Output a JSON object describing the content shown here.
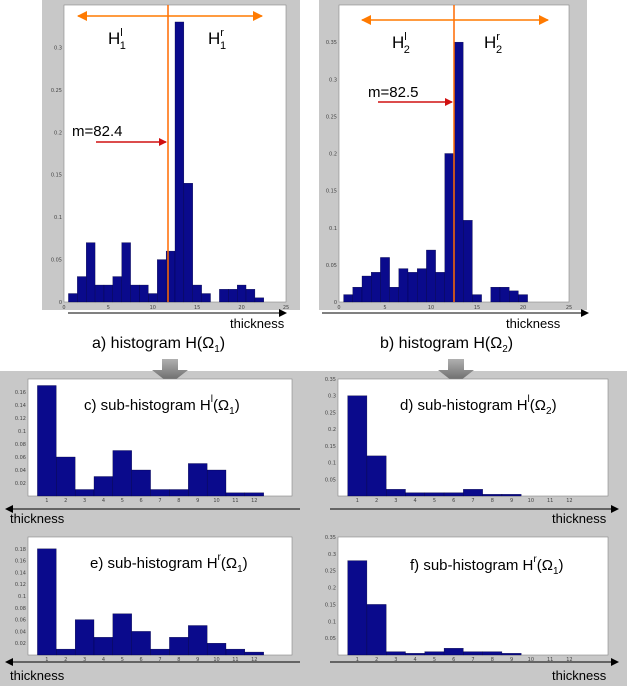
{
  "top_panels": [
    {
      "id": "a",
      "caption": "a) histogram H(Ω1)",
      "axis_label": "thickness",
      "left_label": "H1l",
      "right_label": "H1r",
      "median_label": "m=82.4",
      "y_ticks": [
        "0",
        "0.05",
        "0.1",
        "0.15",
        "0.2",
        "0.25",
        "0.3"
      ],
      "x_ticks": [
        "0",
        "5",
        "10",
        "15",
        "20",
        "25"
      ]
    },
    {
      "id": "b",
      "caption": "b) histogram H(Ω2)",
      "axis_label": "thickness",
      "left_label": "H2l",
      "right_label": "H2r",
      "median_label": "m=82.5",
      "y_ticks": [
        "0",
        "0.05",
        "0.1",
        "0.15",
        "0.2",
        "0.25",
        "0.3",
        "0.35"
      ],
      "x_ticks": [
        "0",
        "5",
        "10",
        "15",
        "20",
        "25"
      ]
    }
  ],
  "sub_panels": [
    {
      "id": "c",
      "title": "c) sub-histogram H l(Ω1)",
      "axis_label": "thickness",
      "x_ticks": [
        "1",
        "2",
        "3",
        "4",
        "5",
        "6",
        "7",
        "8",
        "9",
        "10",
        "11",
        "12"
      ],
      "y_ticks": [
        "0.02",
        "0.04",
        "0.06",
        "0.08",
        "0.1",
        "0.12",
        "0.14",
        "0.16"
      ]
    },
    {
      "id": "d",
      "title": "d) sub-histogram H l(Ω2)",
      "axis_label": "thickness",
      "x_ticks": [
        "1",
        "2",
        "3",
        "4",
        "5",
        "6",
        "7",
        "8",
        "9",
        "10",
        "11",
        "12"
      ],
      "y_ticks": [
        "0.05",
        "0.1",
        "0.15",
        "0.2",
        "0.25",
        "0.3",
        "0.35"
      ]
    },
    {
      "id": "e",
      "title": "e) sub-histogram H r(Ω1)",
      "axis_label": "thickness",
      "x_ticks": [
        "1",
        "2",
        "3",
        "4",
        "5",
        "6",
        "7",
        "8",
        "9",
        "10",
        "11",
        "12"
      ],
      "y_ticks": [
        "0.02",
        "0.04",
        "0.06",
        "0.08",
        "0.1",
        "0.12",
        "0.14",
        "0.16",
        "0.18"
      ]
    },
    {
      "id": "f",
      "title": "f) sub-histogram H r(Ω1)",
      "axis_label": "thickness",
      "x_ticks": [
        "1",
        "2",
        "3",
        "4",
        "5",
        "6",
        "7",
        "8",
        "9",
        "10",
        "11",
        "12"
      ],
      "y_ticks": [
        "0.05",
        "0.1",
        "0.15",
        "0.2",
        "0.25",
        "0.3",
        "0.35"
      ]
    }
  ],
  "chart_data": [
    {
      "type": "bar",
      "id": "a",
      "x": [
        1,
        2,
        3,
        4,
        5,
        6,
        7,
        8,
        9,
        10,
        11,
        12,
        13,
        14,
        15,
        16,
        17,
        18,
        19,
        20,
        21,
        22
      ],
      "values": [
        0.01,
        0.03,
        0.07,
        0.02,
        0.02,
        0.03,
        0.07,
        0.02,
        0.02,
        0.01,
        0.05,
        0.06,
        0.33,
        0.14,
        0.02,
        0.01,
        0.0,
        0.015,
        0.015,
        0.02,
        0.015,
        0.005
      ],
      "xlim": [
        0,
        25
      ],
      "ylim": [
        0,
        0.35
      ],
      "median": 82.4,
      "bar_color": "#0a0a8c"
    },
    {
      "type": "bar",
      "id": "b",
      "x": [
        1,
        2,
        3,
        4,
        5,
        6,
        7,
        8,
        9,
        10,
        11,
        12,
        13,
        14,
        15,
        16,
        17,
        18,
        19,
        20
      ],
      "values": [
        0.01,
        0.02,
        0.035,
        0.04,
        0.06,
        0.02,
        0.045,
        0.04,
        0.045,
        0.07,
        0.04,
        0.2,
        0.35,
        0.11,
        0.01,
        0.0,
        0.02,
        0.02,
        0.015,
        0.01
      ],
      "xlim": [
        0,
        25
      ],
      "ylim": [
        0,
        0.4
      ],
      "median": 82.5,
      "bar_color": "#0a0a8c"
    },
    {
      "type": "bar",
      "id": "c",
      "x": [
        1,
        2,
        3,
        4,
        5,
        6,
        7,
        8,
        9,
        10,
        11,
        12
      ],
      "values": [
        0.17,
        0.06,
        0.01,
        0.03,
        0.07,
        0.04,
        0.01,
        0.01,
        0.05,
        0.04,
        0.005,
        0.005
      ],
      "ylim": [
        0,
        0.18
      ],
      "bar_color": "#0a0a8c"
    },
    {
      "type": "bar",
      "id": "d",
      "x": [
        1,
        2,
        3,
        4,
        5,
        6,
        7,
        8,
        9,
        10,
        11,
        12
      ],
      "values": [
        0.3,
        0.12,
        0.02,
        0.01,
        0.01,
        0.01,
        0.02,
        0.005,
        0.005,
        0.0,
        0.0,
        0.0
      ],
      "ylim": [
        0,
        0.35
      ],
      "bar_color": "#0a0a8c"
    },
    {
      "type": "bar",
      "id": "e",
      "x": [
        1,
        2,
        3,
        4,
        5,
        6,
        7,
        8,
        9,
        10,
        11,
        12
      ],
      "values": [
        0.18,
        0.01,
        0.06,
        0.03,
        0.07,
        0.04,
        0.01,
        0.03,
        0.05,
        0.02,
        0.01,
        0.005
      ],
      "ylim": [
        0,
        0.2
      ],
      "bar_color": "#0a0a8c"
    },
    {
      "type": "bar",
      "id": "f",
      "x": [
        1,
        2,
        3,
        4,
        5,
        6,
        7,
        8,
        9,
        10,
        11,
        12
      ],
      "values": [
        0.28,
        0.15,
        0.01,
        0.005,
        0.01,
        0.02,
        0.01,
        0.01,
        0.005,
        0.0,
        0.0,
        0.0
      ],
      "ylim": [
        0,
        0.35
      ],
      "bar_color": "#0a0a8c"
    }
  ],
  "colors": {
    "panel_bg": "#c8c8c8",
    "bar": "#0a0a8c",
    "median_line": "#ff6a00",
    "arrow_red": "#d01010",
    "arrow_orange": "#ff7a00",
    "down_arrow": "#808080"
  }
}
